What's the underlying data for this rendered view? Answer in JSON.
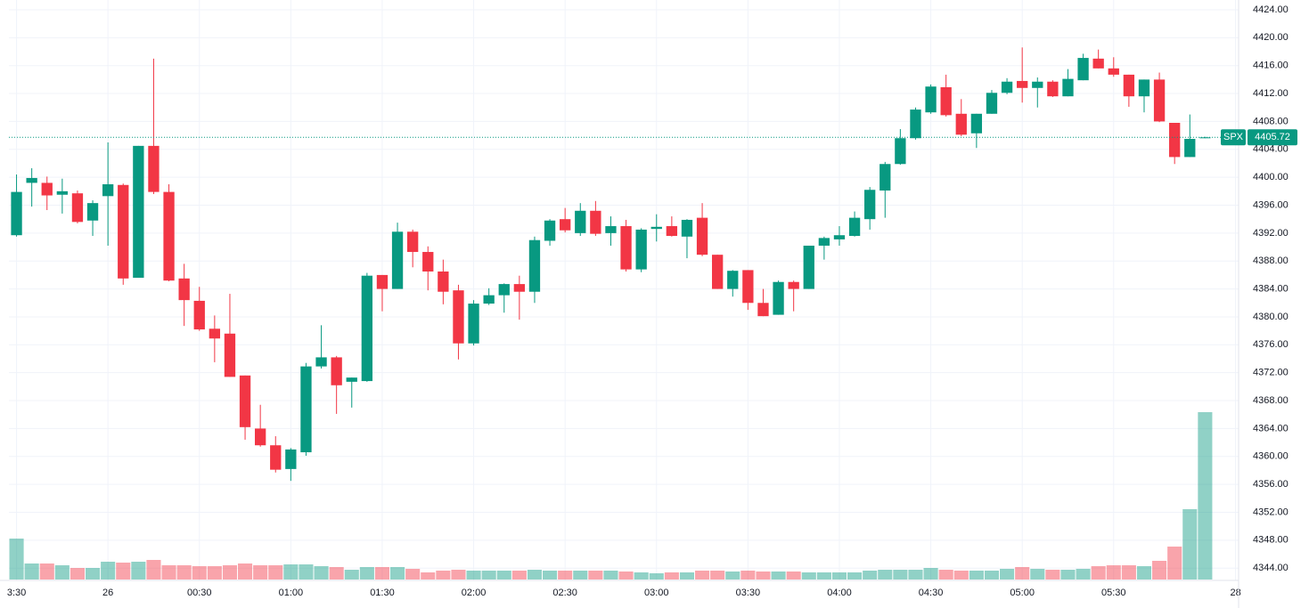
{
  "chart_data": {
    "type": "candlestick",
    "symbol": "SPX",
    "x": [
      0,
      1,
      2,
      3,
      4,
      5,
      6,
      7,
      8,
      9,
      10,
      11,
      12,
      13,
      14,
      15,
      16,
      17,
      18,
      19,
      20,
      21,
      22,
      23,
      24,
      25,
      26,
      27,
      28,
      29,
      30,
      31,
      32,
      33,
      34,
      35,
      36,
      37,
      38,
      39,
      40,
      41,
      42,
      43,
      44,
      45,
      46,
      47,
      48,
      49,
      50,
      51,
      52,
      53,
      54,
      55,
      56,
      57,
      58,
      59,
      60,
      61,
      62,
      63,
      64,
      65,
      66,
      67,
      68,
      69,
      70,
      71,
      72,
      73,
      74,
      75,
      76,
      77,
      78
    ],
    "open": [
      4391.7,
      4399.2,
      4399.2,
      4397.5,
      4397.7,
      4393.8,
      4397.3,
      4398.9,
      4385.6,
      4404.5,
      4397.9,
      4385.5,
      4382.3,
      4378.3,
      4377.6,
      4371.6,
      4364,
      4361.6,
      4358.2,
      4360.6,
      4372.9,
      4374.2,
      4370.7,
      4370.8,
      4386,
      4384,
      4392.2,
      4389.3,
      4386.5,
      4383.8,
      4376.2,
      4381.9,
      4383.1,
      4384.7,
      4383.6,
      4390.9,
      4394,
      4392,
      4395.2,
      4392,
      4393,
      4386.8,
      4392.6,
      4393,
      4391.5,
      4394.2,
      4388.9,
      4384,
      4386.7,
      4382,
      4380.3,
      4385,
      4384,
      4390.2,
      4391.1,
      4391.6,
      4394,
      4398.1,
      4401.9,
      4405.6,
      4409.3,
      4412.9,
      4409.1,
      4406.3,
      4409.1,
      4412.1,
      4413.8,
      4412.8,
      4413.7,
      4411.6,
      4413.9,
      4417,
      4415.6,
      4414.7,
      4411.6,
      4414,
      4407.8,
      4402.9,
      4405.6
    ],
    "high": [
      4400.4,
      4401.3,
      4400.1,
      4399.8,
      4398.1,
      4396.7,
      4405,
      4399.1,
      4404.5,
      4417,
      4399,
      4387.6,
      4384.3,
      4380.2,
      4383.3,
      4371.6,
      4367.4,
      4362.9,
      4361.2,
      4373.4,
      4378.8,
      4374.4,
      4371.3,
      4386.3,
      4386,
      4393.5,
      4392.5,
      4390.1,
      4388.2,
      4384.6,
      4382.4,
      4384.1,
      4384.8,
      4385.9,
      4391.5,
      4394,
      4395.6,
      4396.3,
      4396.6,
      4394.4,
      4393.9,
      4392.7,
      4394.7,
      4394.4,
      4394,
      4396.3,
      4388.9,
      4386.7,
      4386.7,
      4384,
      4385.2,
      4385.2,
      4390.2,
      4391.5,
      4393,
      4395.1,
      4398.6,
      4402.2,
      4406.9,
      4410,
      4413.3,
      4414.7,
      4411.2,
      4409.1,
      4412.5,
      4414.2,
      4418.6,
      4414.3,
      4413.9,
      4415.5,
      4417.7,
      4418.3,
      4417.2,
      4414.7,
      4414,
      4415,
      4407.8,
      4409,
      4405.8
    ],
    "low": [
      4391.5,
      4395.8,
      4395.3,
      4394.8,
      4393.4,
      4391.6,
      4390.2,
      4384.6,
      4385.6,
      4397.6,
      4385.1,
      4378.7,
      4378,
      4373.5,
      4371.4,
      4362.4,
      4361.4,
      4357.7,
      4356.5,
      4360.1,
      4372.6,
      4366.1,
      4367,
      4370.7,
      4380.8,
      4384,
      4387.1,
      4383.8,
      4381.8,
      4373.9,
      4375.9,
      4381.7,
      4380.6,
      4379.6,
      4382,
      4390.2,
      4392.1,
      4391.6,
      4391.6,
      4390.2,
      4386.5,
      4386.4,
      4390.8,
      4391.5,
      4388.4,
      4388.7,
      4384,
      4382.9,
      4381,
      4380.1,
      4380.3,
      4380.8,
      4384,
      4388.2,
      4390.2,
      4391.5,
      4392.5,
      4394.2,
      4401.8,
      4405.4,
      4409.1,
      4408.7,
      4405.9,
      4404.2,
      4409.1,
      4411.9,
      4410.7,
      4410,
      4411.5,
      4411.6,
      4413.9,
      4415.6,
      4414.4,
      4410.1,
      4409.3,
      4407.9,
      4401.9,
      4402.9,
      4405.6
    ],
    "close": [
      4397.9,
      4399.9,
      4397.4,
      4398,
      4393.6,
      4396.3,
      4399,
      4385.5,
      4404.5,
      4397.9,
      4385.2,
      4382.4,
      4378.2,
      4376.9,
      4371.4,
      4364.2,
      4361.6,
      4358.1,
      4361,
      4372.9,
      4374.2,
      4370.2,
      4371.3,
      4385.9,
      4384,
      4392.2,
      4389.3,
      4386.5,
      4383.6,
      4376.2,
      4381.9,
      4383.1,
      4384.7,
      4383.6,
      4391,
      4393.8,
      4392.4,
      4395.2,
      4391.9,
      4393,
      4386.8,
      4392.5,
      4392.9,
      4391.6,
      4393.9,
      4388.9,
      4384,
      4386.6,
      4382,
      4380.1,
      4385,
      4384,
      4390.2,
      4391.3,
      4391.7,
      4394.2,
      4398.2,
      4401.9,
      4405.6,
      4409.7,
      4413,
      4408.9,
      4406.1,
      4409.1,
      4412.1,
      4413.7,
      4412.8,
      4413.7,
      4411.6,
      4414.1,
      4417.1,
      4415.6,
      4414.7,
      4411.6,
      4414,
      4408,
      4402.9,
      4405.5,
      4405.72
    ],
    "volume": [
      46,
      18,
      18,
      16,
      13,
      13,
      20,
      19,
      20,
      22,
      16,
      16,
      15,
      15,
      16,
      18,
      16,
      16,
      17,
      17,
      15,
      14,
      11,
      14,
      14,
      14,
      12,
      8,
      10,
      11,
      10,
      10,
      10,
      10,
      11,
      10,
      10,
      10,
      10,
      10,
      9,
      8,
      7,
      8,
      8,
      10,
      10,
      9,
      10,
      9,
      9,
      9,
      8,
      8,
      8,
      8,
      10,
      11,
      11,
      11,
      13,
      11,
      10,
      10,
      10,
      12,
      14,
      12,
      11,
      11,
      12,
      15,
      16,
      16,
      15,
      21,
      37,
      79,
      188
    ],
    "last_price": 4405.72,
    "up_color": "#089981",
    "down_color": "#f23645",
    "grid": true,
    "xlim": [
      -0.5,
      80.2
    ],
    "xticks": [
      {
        "value": 0,
        "label": "3:30"
      },
      {
        "value": 6,
        "label": "26"
      },
      {
        "value": 12,
        "label": "00:30"
      },
      {
        "value": 18,
        "label": "01:00"
      },
      {
        "value": 24,
        "label": "01:30"
      },
      {
        "value": 30,
        "label": "02:00"
      },
      {
        "value": 36,
        "label": "02:30"
      },
      {
        "value": 42,
        "label": "03:00"
      },
      {
        "value": 48,
        "label": "03:30"
      },
      {
        "value": 54,
        "label": "04:00"
      },
      {
        "value": 60,
        "label": "04:30"
      },
      {
        "value": 66,
        "label": "05:00"
      },
      {
        "value": 72,
        "label": "05:30"
      },
      {
        "value": 80,
        "label": "28"
      }
    ],
    "ylim": [
      4342.24,
      4425.4
    ],
    "yticks": [
      {
        "value": 4344,
        "label": "4344.00"
      },
      {
        "value": 4348,
        "label": "4348.00"
      },
      {
        "value": 4352,
        "label": "4352.00"
      },
      {
        "value": 4356,
        "label": "4356.00"
      },
      {
        "value": 4360,
        "label": "4360.00"
      },
      {
        "value": 4364,
        "label": "4364.00"
      },
      {
        "value": 4368,
        "label": "4368.00"
      },
      {
        "value": 4372,
        "label": "4372.00"
      },
      {
        "value": 4376,
        "label": "4376.00"
      },
      {
        "value": 4380,
        "label": "4380.00"
      },
      {
        "value": 4384,
        "label": "4384.00"
      },
      {
        "value": 4388,
        "label": "4388.00"
      },
      {
        "value": 4392,
        "label": "4392.00"
      },
      {
        "value": 4396,
        "label": "4396.00"
      },
      {
        "value": 4400,
        "label": "4400.00"
      },
      {
        "value": 4404,
        "label": "4404.00"
      },
      {
        "value": 4408,
        "label": "4408.00"
      },
      {
        "value": 4412,
        "label": "4412.00"
      },
      {
        "value": 4416,
        "label": "4416.00"
      },
      {
        "value": 4420,
        "label": "4420.00"
      },
      {
        "value": 4424,
        "label": "4424.00"
      }
    ]
  }
}
